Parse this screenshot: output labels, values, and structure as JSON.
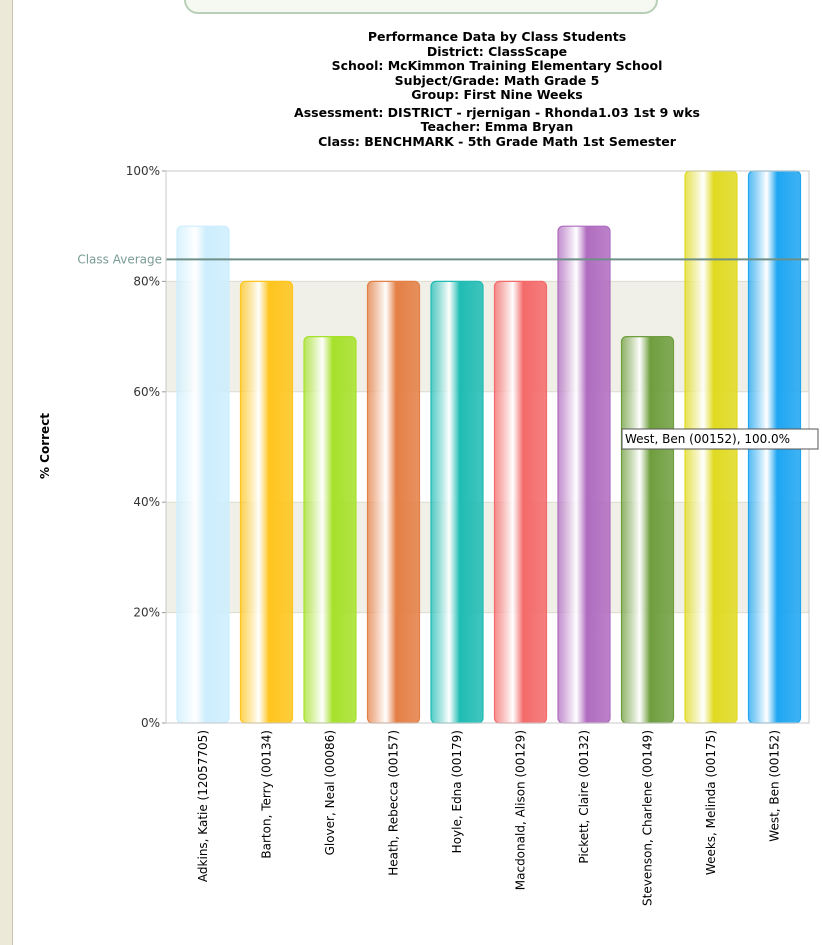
{
  "chart_data": {
    "type": "bar",
    "title_lines": [
      "Performance Data by Class Students",
      "District: ClassScape",
      "School: McKimmon Training Elementary School",
      "Subject/Grade: Math Grade 5",
      "Group: First Nine Weeks",
      "Assessment: DISTRICT - rjernigan - Rhonda1.03 1st 9 wks",
      "Teacher: Emma Bryan",
      "Class: BENCHMARK - 5th Grade Math 1st Semester"
    ],
    "ylabel": "% Correct",
    "ylim": [
      0,
      100
    ],
    "yticks": [
      0,
      20,
      40,
      60,
      80,
      100
    ],
    "ytick_labels": [
      "0%",
      "20%",
      "40%",
      "60%",
      "80%",
      "100%"
    ],
    "grid": true,
    "categories": [
      "Adkins, Katie (12057705)",
      "Barton, Terry (00134)",
      "Glover, Neal (00086)",
      "Heath, Rebecca (00157)",
      "Hoyle, Edna (00179)",
      "Macdonald, Alison (00129)",
      "Pickett, Claire (00132)",
      "Stevenson, Charlene (00149)",
      "Weeks, Melinda (00175)",
      "West, Ben (00152)"
    ],
    "values": [
      90,
      80,
      70,
      80,
      80,
      80,
      90,
      70,
      100,
      100
    ],
    "colors": [
      "#cdeefe",
      "#ffc51c",
      "#a6e12a",
      "#e47f45",
      "#1fbcb4",
      "#f46a6a",
      "#b06cc0",
      "#6f9e3e",
      "#e0da20",
      "#1ea6f2"
    ],
    "reference_line": {
      "label": "Class Average",
      "value": 84,
      "color": "#6e8f88"
    },
    "tooltip": {
      "text": "West, Ben (00152), 100.0%",
      "category_index": 9
    }
  }
}
